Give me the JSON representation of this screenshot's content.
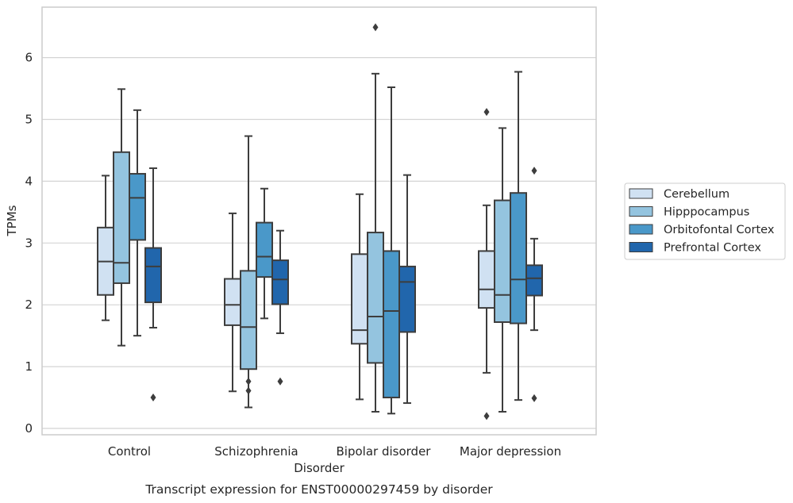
{
  "chart_data": {
    "type": "box",
    "caption": "Transcript expression for ENST00000297459 by disorder",
    "xlabel": "Disorder",
    "ylabel": "TPMs",
    "ylim": [
      -0.1,
      6.8
    ],
    "yticks": [
      0,
      1,
      2,
      3,
      4,
      5,
      6
    ],
    "grid": "horizontal",
    "legend_position": "right",
    "categories": [
      "Control",
      "Schizophrenia",
      "Bipolar disorder",
      "Major depression"
    ],
    "series": [
      {
        "name": "Cerebellum",
        "color": "#d0e1f2",
        "boxes": [
          {
            "whisker_low": 1.75,
            "q1": 2.16,
            "median": 2.7,
            "q3": 3.25,
            "whisker_high": 4.09,
            "outliers": []
          },
          {
            "whisker_low": 0.6,
            "q1": 1.67,
            "median": 2.0,
            "q3": 2.42,
            "whisker_high": 3.48,
            "outliers": []
          },
          {
            "whisker_low": 0.47,
            "q1": 1.37,
            "median": 1.59,
            "q3": 2.82,
            "whisker_high": 3.79,
            "outliers": []
          },
          {
            "whisker_low": 0.9,
            "q1": 1.95,
            "median": 2.25,
            "q3": 2.87,
            "whisker_high": 3.61,
            "outliers": [
              5.12,
              0.2
            ]
          }
        ]
      },
      {
        "name": "Hipppocampus",
        "color": "#94c4df",
        "boxes": [
          {
            "whisker_low": 1.34,
            "q1": 2.35,
            "median": 2.68,
            "q3": 4.47,
            "whisker_high": 5.49,
            "outliers": []
          },
          {
            "whisker_low": 0.34,
            "q1": 0.96,
            "median": 1.64,
            "q3": 2.55,
            "whisker_high": 4.73,
            "outliers": [
              0.76,
              0.61
            ]
          },
          {
            "whisker_low": 0.27,
            "q1": 1.06,
            "median": 1.81,
            "q3": 3.17,
            "whisker_high": 5.74,
            "outliers": [
              6.49
            ]
          },
          {
            "whisker_low": 0.27,
            "q1": 1.72,
            "median": 2.16,
            "q3": 3.69,
            "whisker_high": 4.86,
            "outliers": []
          }
        ]
      },
      {
        "name": "Orbitofontal Cortex",
        "color": "#4a98c9",
        "boxes": [
          {
            "whisker_low": 1.5,
            "q1": 3.05,
            "median": 3.73,
            "q3": 4.12,
            "whisker_high": 5.15,
            "outliers": []
          },
          {
            "whisker_low": 1.78,
            "q1": 2.45,
            "median": 2.78,
            "q3": 3.33,
            "whisker_high": 3.88,
            "outliers": []
          },
          {
            "whisker_low": 0.24,
            "q1": 0.5,
            "median": 1.9,
            "q3": 2.87,
            "whisker_high": 5.52,
            "outliers": []
          },
          {
            "whisker_low": 0.46,
            "q1": 1.7,
            "median": 2.41,
            "q3": 3.81,
            "whisker_high": 5.77,
            "outliers": []
          }
        ]
      },
      {
        "name": "Prefrontal Cortex",
        "color": "#2166ac",
        "boxes": [
          {
            "whisker_low": 1.63,
            "q1": 2.04,
            "median": 2.62,
            "q3": 2.92,
            "whisker_high": 4.21,
            "outliers": [
              0.5
            ]
          },
          {
            "whisker_low": 1.54,
            "q1": 2.01,
            "median": 2.41,
            "q3": 2.72,
            "whisker_high": 3.2,
            "outliers": [
              0.76
            ]
          },
          {
            "whisker_low": 0.41,
            "q1": 1.56,
            "median": 2.37,
            "q3": 2.62,
            "whisker_high": 4.1,
            "outliers": []
          },
          {
            "whisker_low": 1.59,
            "q1": 2.15,
            "median": 2.43,
            "q3": 2.64,
            "whisker_high": 3.07,
            "outliers": [
              4.17,
              0.49
            ]
          }
        ]
      }
    ]
  }
}
